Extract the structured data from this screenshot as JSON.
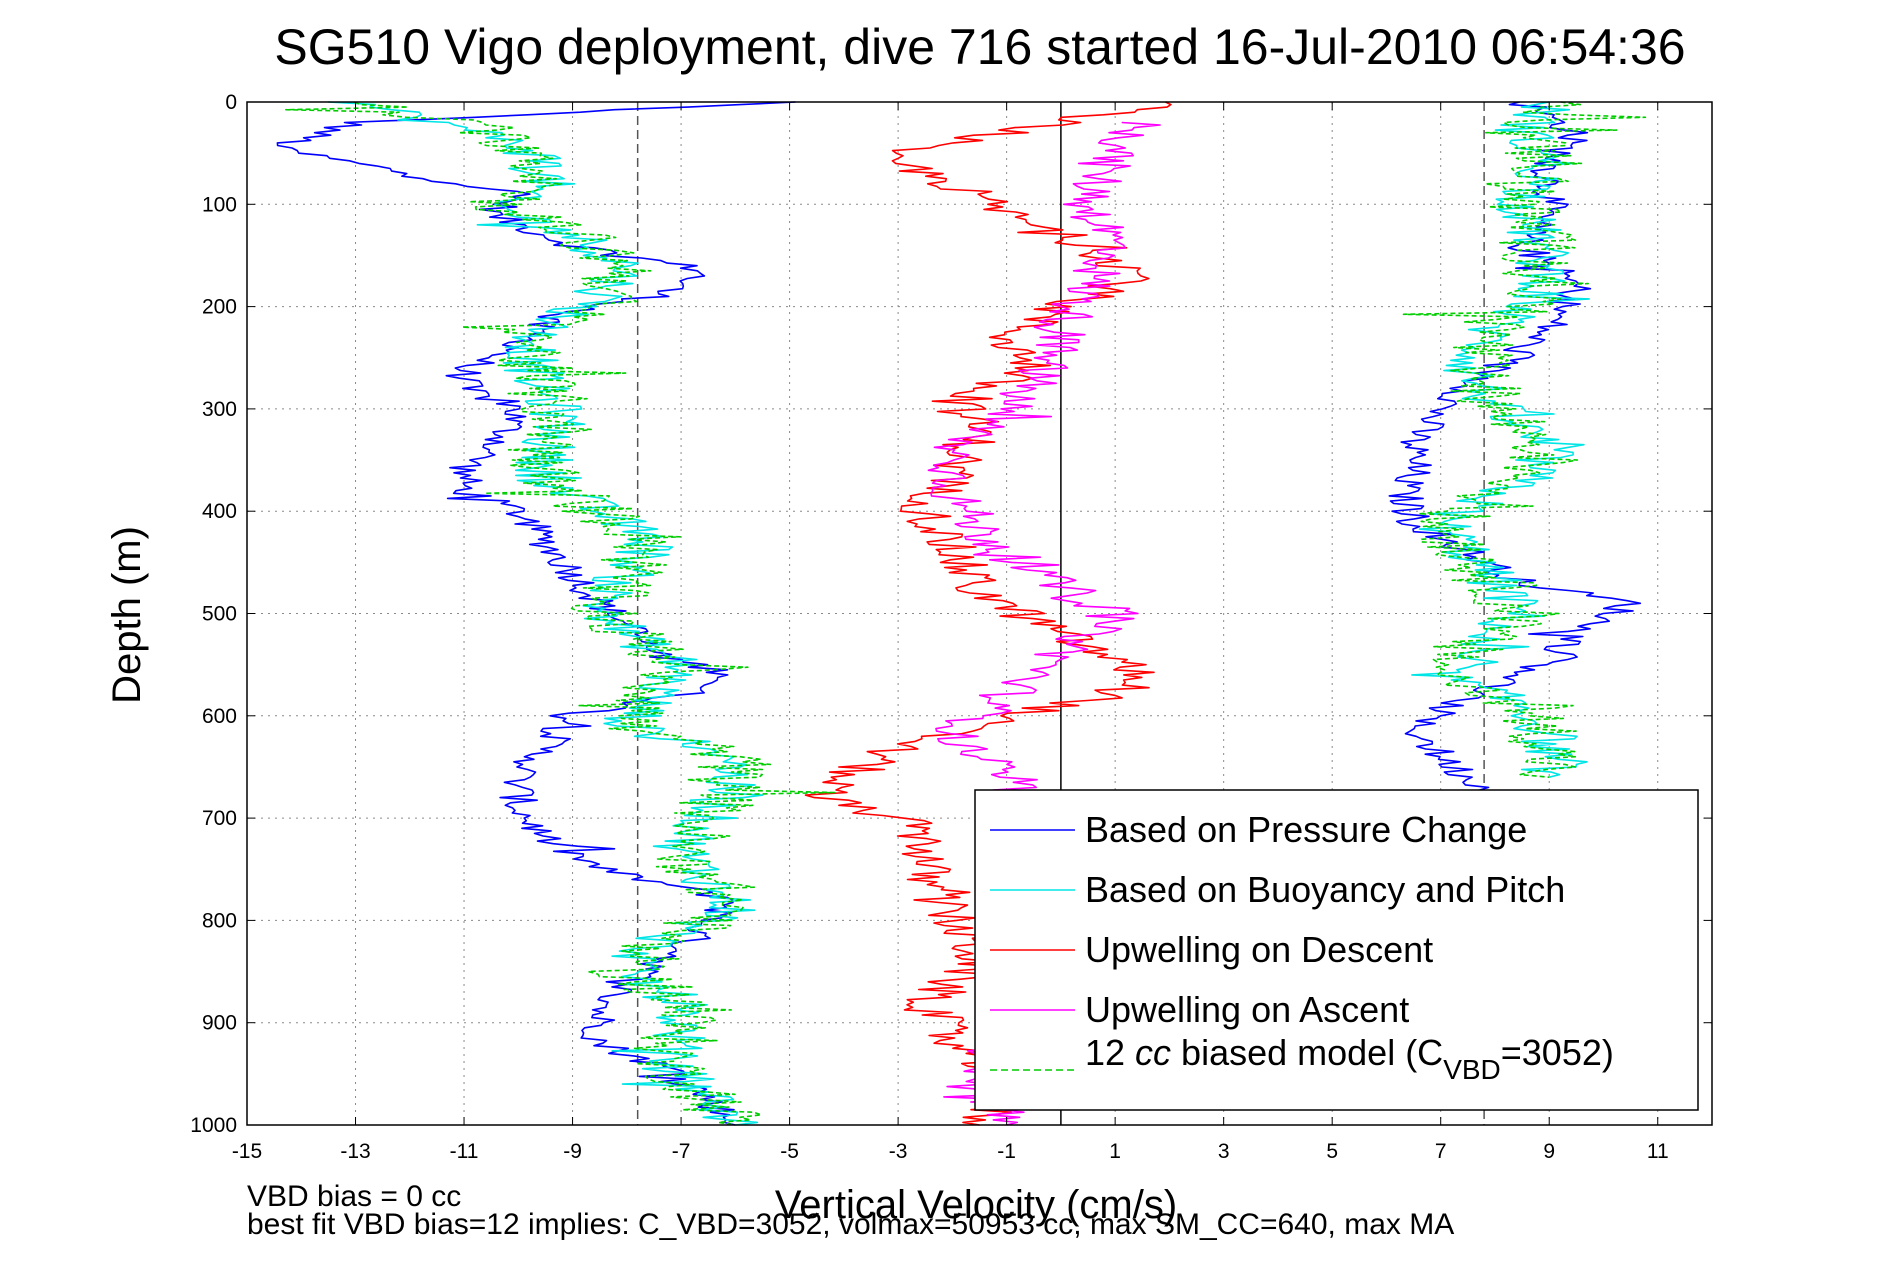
{
  "chart_data": {
    "type": "line",
    "title": "SG510 Vigo deployment, dive 716 started 16-Jul-2010 06:54:36",
    "xlabel": "Vertical Velocity (cm/s)",
    "ylabel": "Depth (m)",
    "xlim": [
      -15,
      12
    ],
    "ylim": [
      0,
      1000
    ],
    "y_reversed": true,
    "grid": true,
    "legend_position": "bottom-right",
    "xticks": [
      "-15",
      "-13",
      "-11",
      "-9",
      "-7",
      "-5",
      "-3",
      "-1",
      "1",
      "3",
      "5",
      "7",
      "9",
      "11"
    ],
    "yticks": [
      "0",
      "100",
      "200",
      "300",
      "400",
      "500",
      "600",
      "700",
      "800",
      "900",
      "1000"
    ],
    "reference_lines": [
      {
        "x": -7.8,
        "style": "dashed",
        "color": "#555555"
      },
      {
        "x": 0,
        "style": "solid",
        "color": "#000000"
      },
      {
        "x": 7.8,
        "style": "dashed",
        "color": "#555555"
      }
    ],
    "legend": [
      {
        "label": "Based on Pressure Change",
        "color": "#0000ff",
        "dash": "solid"
      },
      {
        "label": "Based on Buoyancy and Pitch",
        "color": "#00e5e5",
        "dash": "solid"
      },
      {
        "label": "Upwelling on Descent",
        "color": "#ff0000",
        "dash": "solid"
      },
      {
        "label": "Upwelling on Ascent",
        "color": "#ff00ff",
        "dash": "solid"
      },
      {
        "label_prefix": "12 ",
        "label_italic": "cc",
        "label_mid": " biased model (C",
        "label_sub": "VBD",
        "label_suffix": "=3052)",
        "color": "#00cc00",
        "dash": "dashed"
      }
    ],
    "series": [
      {
        "name": "Based on Pressure Change",
        "branch": "descent",
        "color": "#0000ff",
        "depth": [
          0,
          20,
          45,
          70,
          90,
          110,
          140,
          165,
          190,
          210,
          240,
          260,
          280,
          300,
          330,
          360,
          380,
          400,
          430,
          460,
          490,
          510,
          540,
          560,
          580,
          600,
          630,
          660,
          690,
          720,
          750,
          780,
          800,
          830,
          860,
          890,
          920,
          950,
          1000
        ],
        "velocity": [
          -5,
          -13,
          -14.5,
          -12,
          -10,
          -10.5,
          -9,
          -6.5,
          -7.5,
          -9.5,
          -10,
          -11,
          -11,
          -10,
          -10.3,
          -11,
          -11,
          -10,
          -9.5,
          -9,
          -8.5,
          -8,
          -7.5,
          -6,
          -7,
          -9,
          -9.5,
          -10,
          -10,
          -9.5,
          -8.5,
          -6,
          -6.5,
          -7,
          -8,
          -8.5,
          -8.5,
          -7,
          -6
        ]
      },
      {
        "name": "Based on Pressure Change",
        "branch": "ascent",
        "color": "#0000ff",
        "depth": [
          0,
          30,
          60,
          100,
          140,
          180,
          220,
          260,
          300,
          330,
          360,
          380,
          410,
          440,
          470,
          490,
          520,
          550,
          580,
          610,
          640,
          680
        ],
        "velocity": [
          8.5,
          9.5,
          9,
          9,
          8.5,
          9.5,
          9,
          8,
          7,
          6.5,
          6.5,
          6.3,
          6.5,
          7.5,
          8.5,
          10.5,
          9.5,
          9,
          7.5,
          6.5,
          7,
          8
        ]
      },
      {
        "name": "Based on Buoyancy and Pitch",
        "branch": "descent",
        "color": "#00e5e5",
        "depth": [
          0,
          20,
          40,
          60,
          80,
          100,
          130,
          160,
          190,
          220,
          250,
          280,
          310,
          340,
          370,
          400,
          430,
          460,
          490,
          520,
          550,
          580,
          610,
          640,
          670,
          700,
          730,
          760,
          790,
          820,
          850,
          880,
          910,
          940,
          970,
          1000
        ],
        "velocity": [
          -13,
          -11.5,
          -10,
          -9.5,
          -9.5,
          -10.5,
          -9,
          -8,
          -8.5,
          -9.5,
          -9.8,
          -9.6,
          -9.2,
          -9.5,
          -9.5,
          -8.5,
          -7.5,
          -8,
          -8.5,
          -8,
          -7,
          -7.5,
          -8,
          -6,
          -6.2,
          -6.5,
          -7,
          -6.5,
          -6,
          -7.5,
          -8,
          -7,
          -7,
          -7.3,
          -6.5,
          -6
        ]
      },
      {
        "name": "Based on Buoyancy and Pitch",
        "branch": "ascent",
        "color": "#00e5e5",
        "depth": [
          0,
          30,
          60,
          100,
          140,
          180,
          220,
          260,
          300,
          340,
          370,
          410,
          440,
          470,
          500,
          530,
          560,
          590,
          620,
          660
        ],
        "velocity": [
          9,
          8.5,
          9,
          8.5,
          8.8,
          9,
          8,
          7.5,
          8,
          9,
          8.5,
          7,
          7.5,
          8,
          8.5,
          7.5,
          7,
          8.5,
          9,
          9
        ]
      },
      {
        "name": "Upwelling on Descent",
        "color": "#ff0000",
        "depth": [
          0,
          30,
          50,
          80,
          110,
          140,
          170,
          200,
          230,
          260,
          290,
          320,
          360,
          400,
          440,
          480,
          520,
          560,
          580,
          600,
          630,
          660,
          680,
          700,
          720,
          760,
          800,
          840,
          880,
          920,
          960,
          1000
        ],
        "velocity": [
          2,
          -1,
          -3.5,
          -2,
          -1,
          0.5,
          1.5,
          0,
          -1,
          -0.5,
          -2,
          -1.5,
          -2,
          -2.5,
          -2,
          -1.5,
          0,
          1.5,
          1,
          -1,
          -3,
          -4,
          -4.5,
          -3,
          -2.5,
          -2.5,
          -2,
          -1.5,
          -2.5,
          -2,
          -1,
          -1.5
        ]
      },
      {
        "name": "Upwelling on Ascent",
        "color": "#ff00ff",
        "depth": [
          20,
          60,
          100,
          140,
          180,
          220,
          260,
          300,
          340,
          380,
          420,
          460,
          500,
          540,
          580,
          620,
          660,
          700,
          740,
          800,
          850,
          900,
          950,
          1000
        ],
        "velocity": [
          1.5,
          0.8,
          0.5,
          1,
          0.5,
          0,
          -0.3,
          -1,
          -2,
          -2,
          -1.5,
          -0.5,
          1,
          0,
          -1,
          -2,
          -1,
          -0.5,
          -0.8,
          -1,
          -0.5,
          -1,
          -1.5,
          -1
        ]
      },
      {
        "name": "12 cc biased model",
        "branch": "descent",
        "color": "#00cc00",
        "depth": [
          0,
          20,
          40,
          60,
          80,
          100,
          130,
          160,
          190,
          220,
          250,
          280,
          310,
          340,
          370,
          400,
          430,
          460,
          490,
          520,
          550,
          580,
          610,
          640,
          670,
          700,
          730,
          760,
          790,
          820,
          850,
          880,
          910,
          940,
          970,
          1000
        ],
        "velocity": [
          -13,
          -11.3,
          -10,
          -9.5,
          -9.5,
          -10.3,
          -9,
          -8,
          -8.3,
          -9.5,
          -9.8,
          -9.6,
          -9.2,
          -9.5,
          -9.5,
          -8.5,
          -7.5,
          -8,
          -8.5,
          -8,
          -7,
          -7.5,
          -8,
          -6,
          -6.2,
          -6.5,
          -7,
          -6.5,
          -6,
          -7.5,
          -8,
          -7,
          -7,
          -7.3,
          -6.5,
          -6
        ]
      },
      {
        "name": "12 cc biased model",
        "branch": "ascent",
        "color": "#00cc00",
        "depth": [
          0,
          30,
          60,
          100,
          140,
          180,
          220,
          260,
          300,
          340,
          370,
          410,
          440,
          470,
          500,
          530,
          560,
          590,
          620,
          660
        ],
        "velocity": [
          9.2,
          8.5,
          9,
          8.5,
          8.8,
          9,
          8,
          7.5,
          8,
          9,
          8.5,
          7,
          7.5,
          8,
          8.5,
          7.5,
          7,
          8.5,
          9,
          9
        ]
      }
    ],
    "annotations": [
      {
        "text": "VBD bias = 0 cc"
      },
      {
        "text": "best fit VBD bias=12 implies: C_VBD=3052, volmax=50953 cc, max SM_CC=640, max MA"
      }
    ]
  }
}
